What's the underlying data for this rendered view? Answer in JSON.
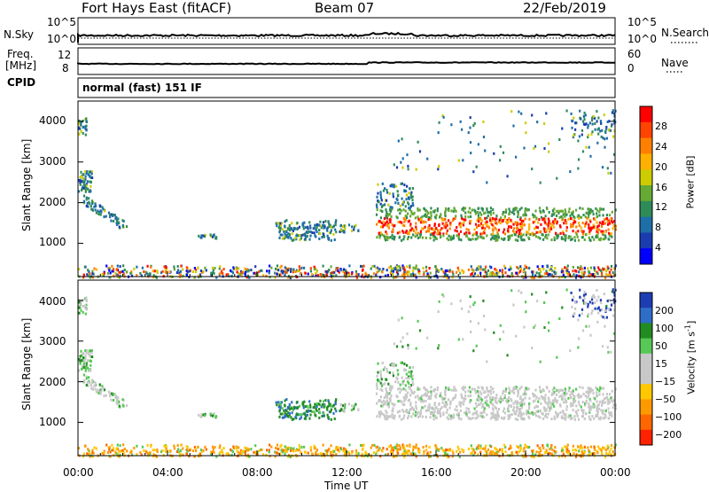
{
  "header": {
    "title": "Fort Hays East (fitACF)",
    "beam": "Beam 07",
    "date": "22/Feb/2019"
  },
  "top_panels": {
    "nsky_label": "N.Sky",
    "nsky_ticks": [
      "10^5",
      "10^0"
    ],
    "nsearch_label": "N.Search",
    "nsearch_ticks": [
      "10^5",
      "10^0"
    ],
    "freq_label": "Freq.",
    "freq_unit": "[MHz]",
    "freq_ticks": [
      "12",
      "8"
    ],
    "nave_label": "Nave",
    "nave_ticks": [
      "60",
      "0"
    ],
    "cpid_label": "CPID",
    "cpid_text": "normal (fast) 151 IF"
  },
  "chart_data": [
    {
      "type": "heatmap",
      "name": "power",
      "ylabel": "Slant Range [km]",
      "y_ticks": [
        1000,
        2000,
        3000,
        4000
      ],
      "ylim": [
        180,
        4500
      ],
      "x_ticks": [
        "00:00",
        "04:00",
        "08:00",
        "12:00",
        "16:00",
        "20:00",
        "00:00"
      ],
      "colorbar": {
        "label": "Power [dB]",
        "ticks": [
          "28",
          "24",
          "20",
          "16",
          "12",
          "8",
          "4"
        ],
        "colors": [
          "#ff0000",
          "#ff4400",
          "#ff8000",
          "#ffb000",
          "#cccc00",
          "#66aa33",
          "#2e8b57",
          "#1e6ea8",
          "#1a3cb0",
          "#0000ff"
        ]
      }
    },
    {
      "type": "heatmap",
      "name": "velocity",
      "ylabel": "Slant Range [km]",
      "y_ticks": [
        1000,
        2000,
        3000,
        4000
      ],
      "ylim": [
        180,
        4500
      ],
      "x_ticks": [
        "00:00",
        "04:00",
        "08:00",
        "12:00",
        "16:00",
        "20:00",
        "00:00"
      ],
      "xlabel": "Time UT",
      "colorbar": {
        "label": "Velocity [m s",
        "label_sup": "-1",
        "label_end": "]",
        "ticks": [
          "200",
          "100",
          "50",
          "15",
          "−15",
          "−50",
          "−100",
          "−200"
        ],
        "colors": [
          "#1e3cb4",
          "#2e6ec8",
          "#228b22",
          "#55c855",
          "#c8c8c8",
          "#c8c8c8",
          "#ffc800",
          "#ff9900",
          "#ff6600",
          "#ff2200"
        ]
      }
    }
  ]
}
